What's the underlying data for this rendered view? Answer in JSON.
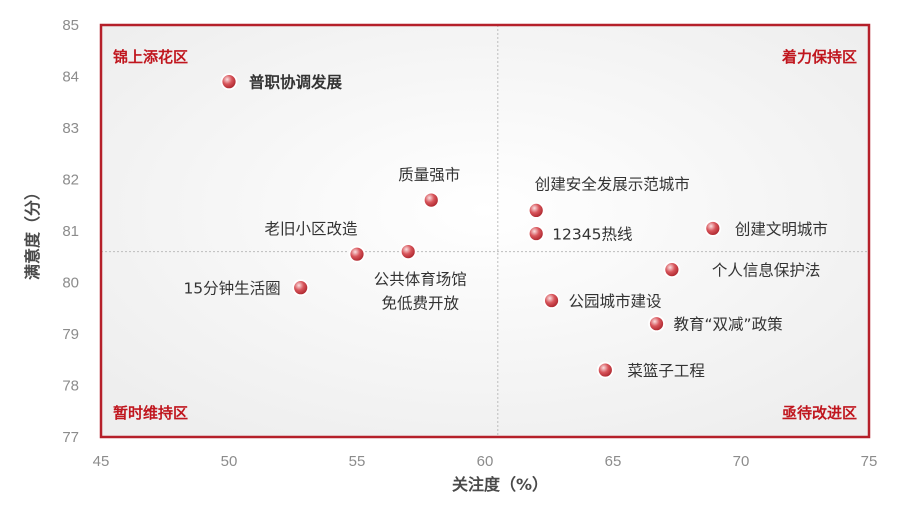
{
  "chart_data": {
    "type": "scatter",
    "xlabel": "关注度（%）",
    "ylabel": "满意度（分）",
    "xlim": [
      45,
      75
    ],
    "ylim": [
      77,
      85
    ],
    "x_ticks": [
      "45",
      "50",
      "55",
      "60",
      "65",
      "70",
      "75"
    ],
    "y_ticks": [
      "77",
      "78",
      "79",
      "80",
      "81",
      "82",
      "83",
      "84",
      "85"
    ],
    "divider": {
      "x": 60.5,
      "y": 80.6
    },
    "quadrant_labels": {
      "top_left": "锦上添花区",
      "top_right": "着力保持区",
      "bottom_left": "暂时维持区",
      "bottom_right": "亟待改进区"
    },
    "colors": {
      "frame": "#b5202a",
      "quadrant_text": "#c0161e",
      "marker": "#c9383f",
      "marker_highlight": "#f7c9cb",
      "divider": "#bdbdbd"
    },
    "points": [
      {
        "label": "普职协调发展",
        "x": 50.0,
        "y": 83.9,
        "bold": true
      },
      {
        "label": "质量强市",
        "x": 57.9,
        "y": 81.6
      },
      {
        "label": "老旧小区改造",
        "x": 55.0,
        "y": 80.55
      },
      {
        "label": "公共体育场馆\n免低费开放",
        "x": 57.0,
        "y": 80.6
      },
      {
        "label": "15分钟生活圈",
        "x": 52.8,
        "y": 79.9
      },
      {
        "label": "创建安全发展示范城市",
        "x": 62.0,
        "y": 81.4
      },
      {
        "label": "12345热线",
        "x": 62.0,
        "y": 80.95
      },
      {
        "label": "创建文明城市",
        "x": 68.9,
        "y": 81.05
      },
      {
        "label": "个人信息保护法",
        "x": 67.3,
        "y": 80.25
      },
      {
        "label": "公园城市建设",
        "x": 62.6,
        "y": 79.65
      },
      {
        "label": "教育“双减”政策",
        "x": 66.7,
        "y": 79.2
      },
      {
        "label": "菜篮子工程",
        "x": 64.7,
        "y": 78.3
      }
    ]
  }
}
